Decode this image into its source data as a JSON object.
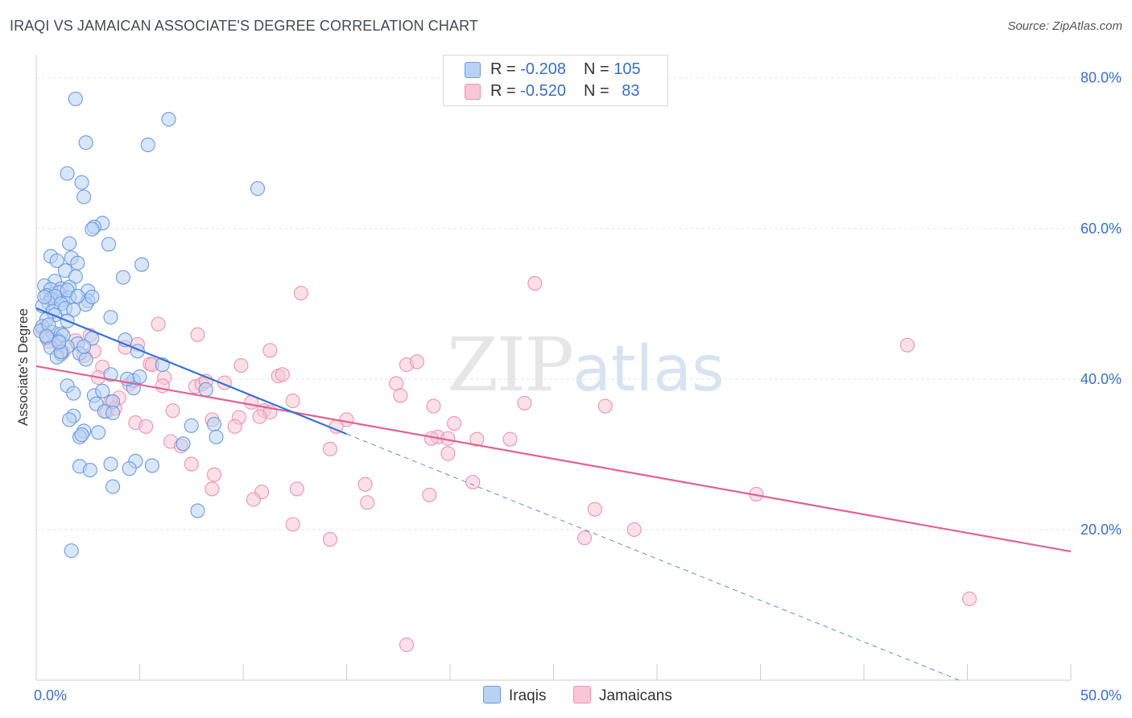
{
  "title": "IRAQI VS JAMAICAN ASSOCIATE'S DEGREE CORRELATION CHART",
  "source": "Source: ZipAtlas.com",
  "watermark": {
    "zip": "ZIP",
    "atlas": "atlas"
  },
  "legend": {
    "iraqis": {
      "r_label": "R = ",
      "r_value": "-0.208",
      "n_label": "N = ",
      "n_value": "105"
    },
    "jamaicans": {
      "r_label": "R = ",
      "r_value": "-0.520",
      "n_label": "N = ",
      "n_value": "83"
    }
  },
  "colors": {
    "iraqi_fill": "#b9d1f3",
    "iraqi_stroke": "#6a9be0",
    "iraqi_line": "#3a72d0",
    "jamaican_fill": "#f8c6d6",
    "jamaican_stroke": "#ec93b1",
    "jamaican_line": "#e1628f",
    "axis_text": "#3a6fc7",
    "grid": "#e5e7ea"
  },
  "chart_data": {
    "type": "scatter",
    "title": "IRAQI VS JAMAICAN ASSOCIATE'S DEGREE CORRELATION CHART",
    "xlabel": "",
    "ylabel": "Associate's Degree",
    "xlim": [
      0,
      50
    ],
    "ylim": [
      0,
      82
    ],
    "x_tick_labels": [
      "0.0%",
      "50.0%"
    ],
    "y_ticks": [
      20,
      40,
      60,
      80
    ],
    "y_tick_labels": [
      "20.0%",
      "40.0%",
      "60.0%",
      "80.0%"
    ],
    "series": [
      {
        "name": "Iraqis",
        "points": [
          [
            1.9,
            77.2
          ],
          [
            6.4,
            74.5
          ],
          [
            2.4,
            71.4
          ],
          [
            5.4,
            71.1
          ],
          [
            1.5,
            67.3
          ],
          [
            2.2,
            66.1
          ],
          [
            10.7,
            65.3
          ],
          [
            2.3,
            64.2
          ],
          [
            3.2,
            60.7
          ],
          [
            2.8,
            60.2
          ],
          [
            2.7,
            59.9
          ],
          [
            3.5,
            57.9
          ],
          [
            1.6,
            58.0
          ],
          [
            0.7,
            56.3
          ],
          [
            1.7,
            56.1
          ],
          [
            5.1,
            55.2
          ],
          [
            1.0,
            55.7
          ],
          [
            2.0,
            55.4
          ],
          [
            1.4,
            54.4
          ],
          [
            4.2,
            53.5
          ],
          [
            1.9,
            53.6
          ],
          [
            0.9,
            53.0
          ],
          [
            0.4,
            52.4
          ],
          [
            1.2,
            52.0
          ],
          [
            1.6,
            52.2
          ],
          [
            2.5,
            51.7
          ],
          [
            0.7,
            51.9
          ],
          [
            1.1,
            51.5
          ],
          [
            0.5,
            51.1
          ],
          [
            0.7,
            50.6
          ],
          [
            1.3,
            50.5
          ],
          [
            0.9,
            51.0
          ],
          [
            1.6,
            50.8
          ],
          [
            0.6,
            50.1
          ],
          [
            1.2,
            50.0
          ],
          [
            2.5,
            50.4
          ],
          [
            2.4,
            49.9
          ],
          [
            0.3,
            49.7
          ],
          [
            1.4,
            49.4
          ],
          [
            0.8,
            49.0
          ],
          [
            1.8,
            49.2
          ],
          [
            0.9,
            48.5
          ],
          [
            3.6,
            48.2
          ],
          [
            0.5,
            47.9
          ],
          [
            1.5,
            47.7
          ],
          [
            0.3,
            47.0
          ],
          [
            0.8,
            46.2
          ],
          [
            0.2,
            46.4
          ],
          [
            1.2,
            46.0
          ],
          [
            4.3,
            45.2
          ],
          [
            2.7,
            45.4
          ],
          [
            0.5,
            45.5
          ],
          [
            1.1,
            45.1
          ],
          [
            2.0,
            44.7
          ],
          [
            1.5,
            44.3
          ],
          [
            0.7,
            44.2
          ],
          [
            4.9,
            43.7
          ],
          [
            1.2,
            43.3
          ],
          [
            2.1,
            43.4
          ],
          [
            1.0,
            42.9
          ],
          [
            1.2,
            43.6
          ],
          [
            2.4,
            42.6
          ],
          [
            6.1,
            41.9
          ],
          [
            3.6,
            40.6
          ],
          [
            4.7,
            39.8
          ],
          [
            1.5,
            39.1
          ],
          [
            4.7,
            38.8
          ],
          [
            8.2,
            38.6
          ],
          [
            1.8,
            38.1
          ],
          [
            2.8,
            37.8
          ],
          [
            3.7,
            37.0
          ],
          [
            2.9,
            36.7
          ],
          [
            1.8,
            35.1
          ],
          [
            3.3,
            35.7
          ],
          [
            3.7,
            35.5
          ],
          [
            1.6,
            34.6
          ],
          [
            8.6,
            34.0
          ],
          [
            7.5,
            33.8
          ],
          [
            2.3,
            33.1
          ],
          [
            3.0,
            32.9
          ],
          [
            2.1,
            32.3
          ],
          [
            2.2,
            32.6
          ],
          [
            8.7,
            32.3
          ],
          [
            7.1,
            31.4
          ],
          [
            4.8,
            29.1
          ],
          [
            3.6,
            28.7
          ],
          [
            2.1,
            28.4
          ],
          [
            5.6,
            28.5
          ],
          [
            4.5,
            28.1
          ],
          [
            2.6,
            27.9
          ],
          [
            3.7,
            25.7
          ],
          [
            7.8,
            22.5
          ],
          [
            1.7,
            17.2
          ],
          [
            5.0,
            40.3
          ],
          [
            1.3,
            45.8
          ],
          [
            0.4,
            50.9
          ],
          [
            1.5,
            51.8
          ],
          [
            2.0,
            51.0
          ],
          [
            2.7,
            50.9
          ],
          [
            0.6,
            47.2
          ],
          [
            1.1,
            44.9
          ],
          [
            0.5,
            45.7
          ],
          [
            4.4,
            40.0
          ],
          [
            3.2,
            38.4
          ],
          [
            2.3,
            44.3
          ]
        ]
      },
      {
        "name": "Jamaicans",
        "points": [
          [
            0.3,
            46.6
          ],
          [
            0.9,
            45.3
          ],
          [
            1.1,
            44.6
          ],
          [
            1.9,
            45.1
          ],
          [
            2.6,
            45.8
          ],
          [
            0.6,
            45.0
          ],
          [
            1.3,
            43.6
          ],
          [
            2.8,
            43.7
          ],
          [
            2.3,
            43.1
          ],
          [
            4.3,
            44.2
          ],
          [
            4.9,
            44.6
          ],
          [
            3.2,
            41.6
          ],
          [
            5.9,
            47.3
          ],
          [
            7.8,
            45.9
          ],
          [
            12.8,
            51.4
          ],
          [
            24.1,
            52.7
          ],
          [
            42.1,
            44.5
          ],
          [
            9.9,
            41.8
          ],
          [
            11.3,
            43.8
          ],
          [
            5.5,
            42.0
          ],
          [
            5.6,
            41.9
          ],
          [
            3.0,
            40.2
          ],
          [
            4.5,
            39.3
          ],
          [
            6.2,
            40.2
          ],
          [
            6.1,
            39.1
          ],
          [
            7.7,
            39.0
          ],
          [
            8.0,
            39.3
          ],
          [
            8.2,
            39.7
          ],
          [
            9.1,
            39.5
          ],
          [
            11.7,
            40.4
          ],
          [
            11.9,
            40.6
          ],
          [
            17.4,
            39.4
          ],
          [
            17.9,
            41.9
          ],
          [
            18.4,
            42.3
          ],
          [
            17.6,
            37.8
          ],
          [
            4.0,
            37.5
          ],
          [
            3.6,
            37.0
          ],
          [
            3.8,
            36.1
          ],
          [
            10.4,
            36.9
          ],
          [
            12.4,
            37.1
          ],
          [
            3.4,
            35.7
          ],
          [
            6.6,
            35.8
          ],
          [
            8.5,
            34.6
          ],
          [
            9.8,
            34.9
          ],
          [
            11.0,
            35.8
          ],
          [
            11.3,
            35.6
          ],
          [
            10.8,
            35.0
          ],
          [
            15.0,
            34.6
          ],
          [
            19.2,
            36.4
          ],
          [
            23.6,
            36.8
          ],
          [
            27.5,
            36.4
          ],
          [
            4.8,
            34.2
          ],
          [
            5.3,
            33.7
          ],
          [
            9.6,
            33.7
          ],
          [
            14.5,
            33.7
          ],
          [
            20.2,
            34.1
          ],
          [
            19.4,
            32.3
          ],
          [
            19.9,
            32.1
          ],
          [
            21.3,
            32.0
          ],
          [
            22.9,
            32.0
          ],
          [
            6.5,
            31.7
          ],
          [
            7.0,
            31.1
          ],
          [
            19.1,
            32.1
          ],
          [
            14.2,
            30.7
          ],
          [
            19.9,
            30.1
          ],
          [
            7.5,
            28.7
          ],
          [
            8.6,
            27.3
          ],
          [
            15.9,
            26.0
          ],
          [
            21.1,
            26.3
          ],
          [
            8.5,
            25.4
          ],
          [
            10.9,
            25.0
          ],
          [
            12.6,
            25.4
          ],
          [
            19.0,
            24.6
          ],
          [
            10.5,
            24.0
          ],
          [
            16.0,
            23.6
          ],
          [
            34.8,
            24.7
          ],
          [
            27.0,
            22.7
          ],
          [
            28.9,
            20.0
          ],
          [
            14.2,
            18.7
          ],
          [
            26.5,
            18.9
          ],
          [
            45.1,
            10.8
          ],
          [
            17.9,
            4.7
          ],
          [
            12.4,
            20.7
          ]
        ]
      }
    ],
    "trendlines": [
      {
        "series": "Iraqis",
        "solid": {
          "x": [
            0,
            15
          ],
          "y": [
            49.4,
            32.7
          ]
        },
        "dashed": {
          "x": [
            15,
            44.6
          ],
          "y": [
            32.7,
            0
          ]
        }
      },
      {
        "series": "Jamaicans",
        "solid": {
          "x": [
            0,
            50
          ],
          "y": [
            41.7,
            17.1
          ]
        }
      }
    ]
  },
  "bottom_legend": {
    "iraqis": "Iraqis",
    "jamaicans": "Jamaicans"
  }
}
